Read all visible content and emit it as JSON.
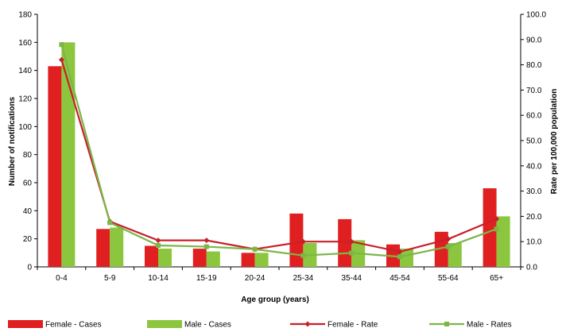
{
  "chart_data": {
    "type": "bar",
    "xlabel": "Age group (years)",
    "ylabel": "Number of notifications",
    "ylabel_right": "Rate per 100,000 population",
    "ylim": [
      0,
      180
    ],
    "ylim_right": [
      0,
      100
    ],
    "yticks": [
      "0",
      "20",
      "40",
      "60",
      "80",
      "100",
      "120",
      "140",
      "160",
      "180"
    ],
    "yticks_right": [
      "0.0",
      "10.0",
      "20.0",
      "30.0",
      "40.0",
      "50.0",
      "60.0",
      "70.0",
      "80.0",
      "90.0",
      "100.0"
    ],
    "categories": [
      "0-4",
      "5-9",
      "10-14",
      "15-19",
      "20-24",
      "25-34",
      "35-44",
      "45-54",
      "55-64",
      "65+"
    ],
    "grid": false,
    "legend_position": "bottom",
    "series": [
      {
        "name": "Female - Cases",
        "kind": "bar",
        "axis": "left",
        "color": "#e02020",
        "values": [
          143,
          27,
          15,
          13,
          10,
          38,
          34,
          16,
          25,
          56
        ]
      },
      {
        "name": "Male - Cases",
        "kind": "bar",
        "axis": "left",
        "color": "#8cc63f",
        "values": [
          160,
          28,
          13,
          11,
          10,
          17,
          19,
          13,
          17,
          36
        ]
      },
      {
        "name": "Female - Rate",
        "kind": "line",
        "axis": "right",
        "color": "#c8202a",
        "marker": "diamond",
        "values": [
          82,
          18,
          10.5,
          10.5,
          7,
          10,
          10,
          6,
          11,
          19
        ]
      },
      {
        "name": "Male - Rates",
        "kind": "line",
        "axis": "right",
        "color": "#7ab648",
        "marker": "square",
        "values": [
          88,
          17.5,
          8.5,
          8,
          7,
          4.5,
          5.5,
          4,
          8,
          15
        ]
      }
    ]
  }
}
